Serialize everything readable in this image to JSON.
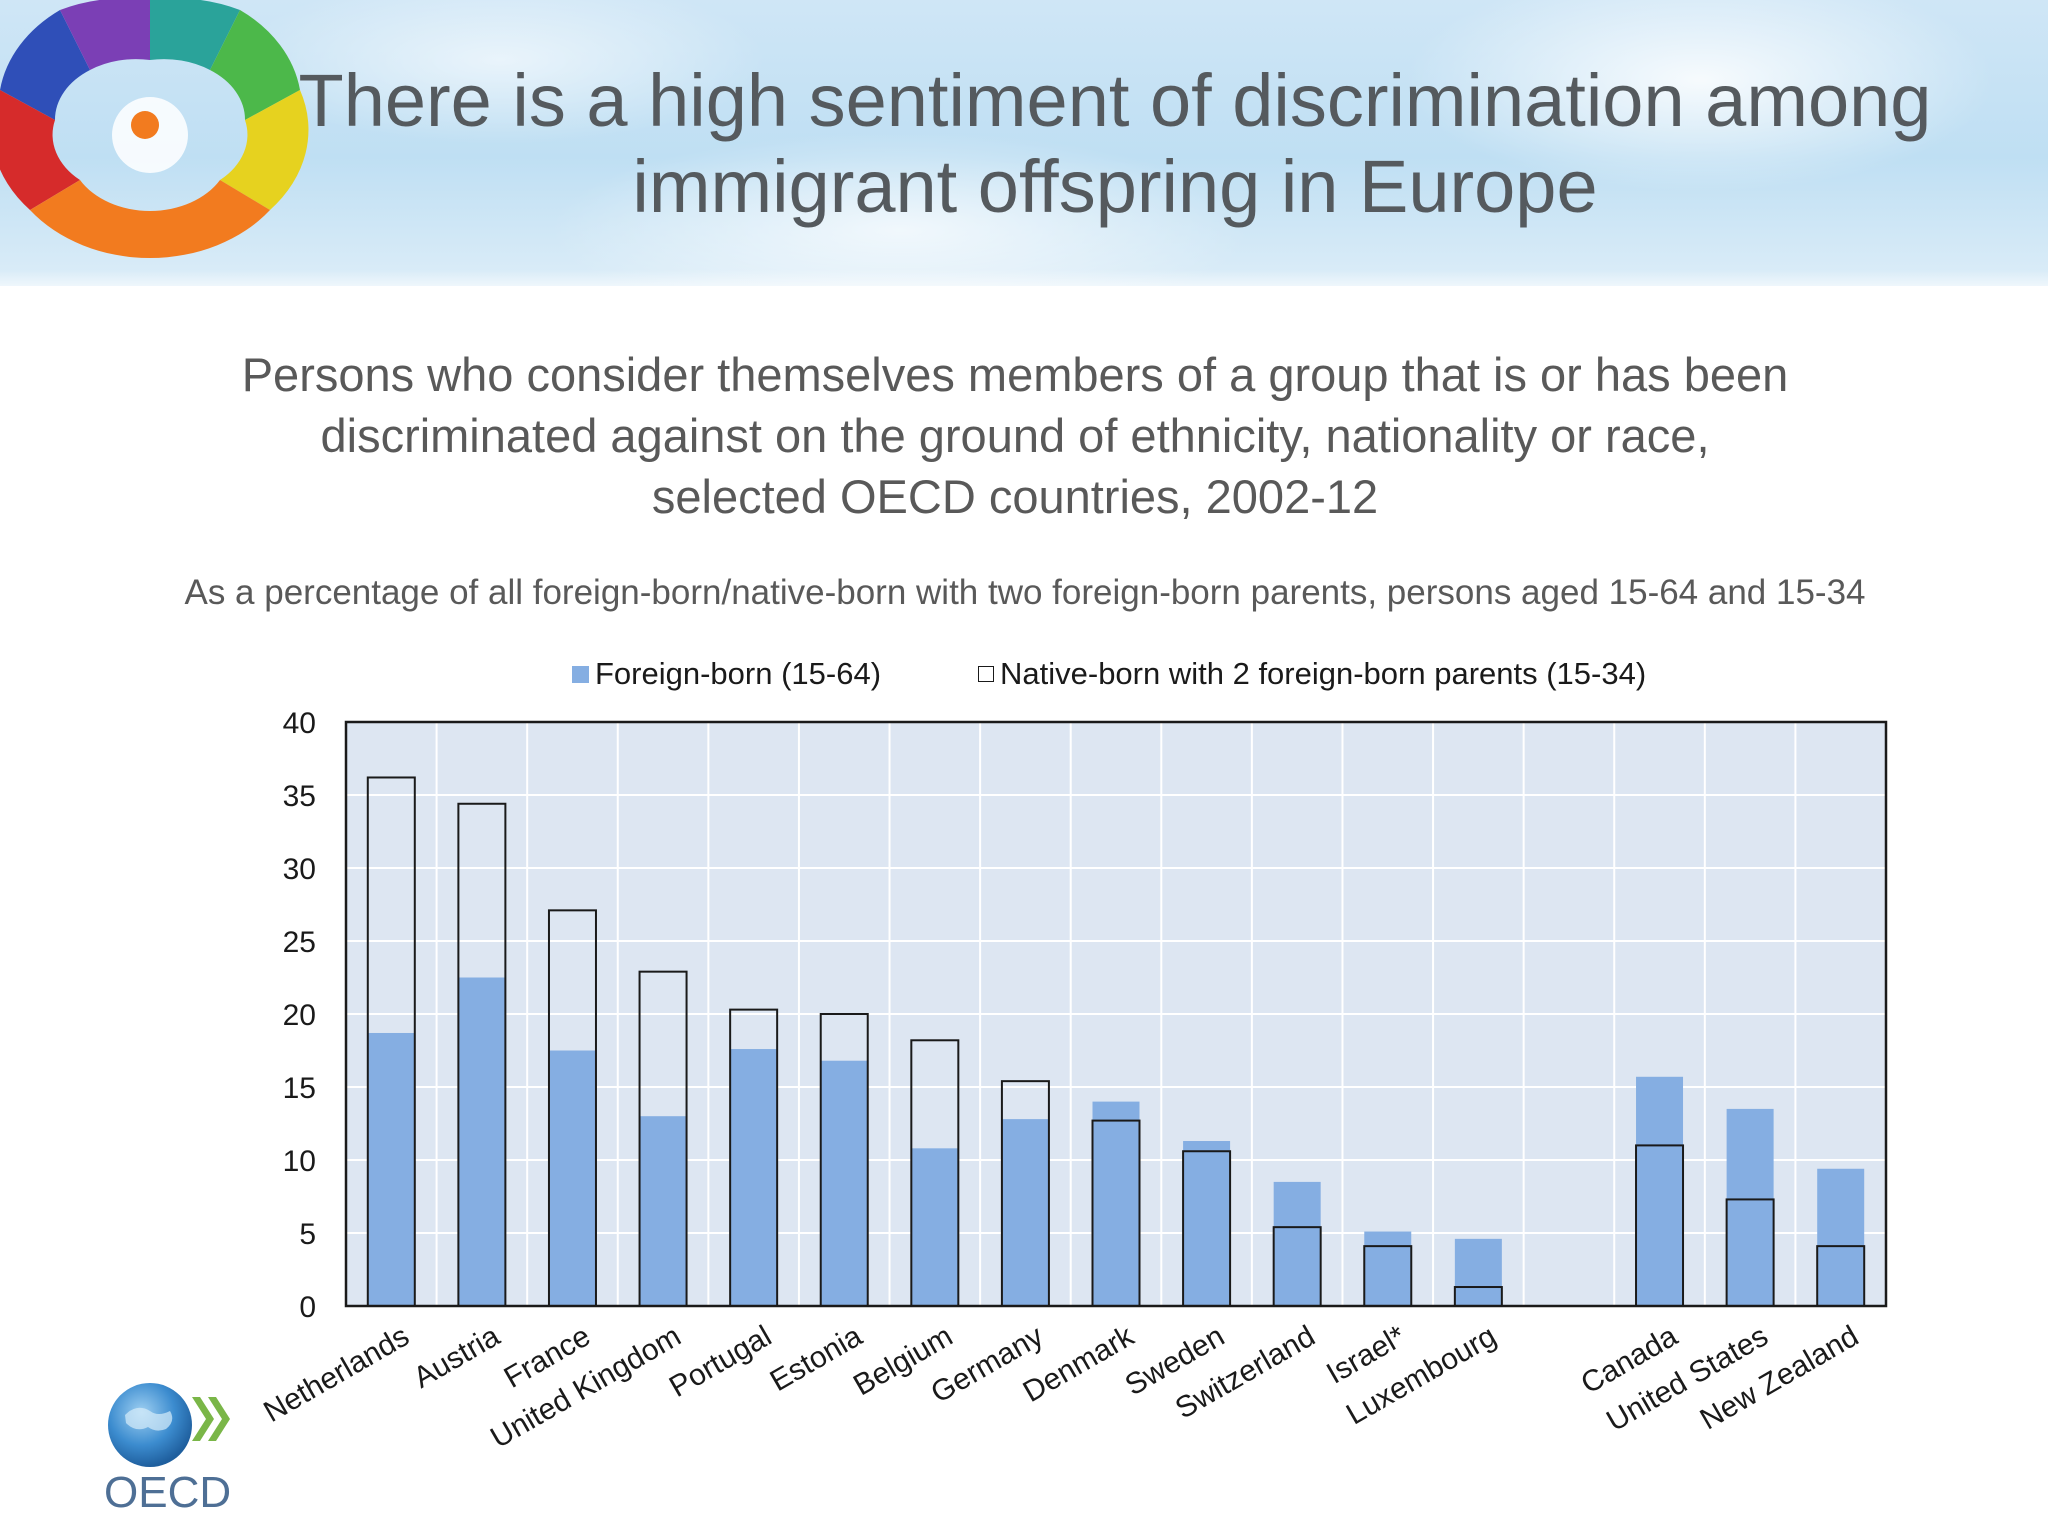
{
  "header": {
    "title_line1": "There is a high sentiment of discrimination among",
    "title_line2": "immigrant offspring in Europe"
  },
  "chart_header": {
    "subtitle_line1": "Persons who consider themselves members of a group that is or has been",
    "subtitle_line2": "discriminated against on the ground of ethnicity, nationality or race,",
    "subtitle_line3": "selected OECD countries, 2002-12",
    "note": "As a percentage of all foreign-born/native-born with two foreign-born parents, persons aged 15-64 and 15-34"
  },
  "legend": {
    "foreign": "Foreign-born (15-64)",
    "native": "Native-born with 2 foreign-born parents (15-34)"
  },
  "logo": {
    "text": "OECD"
  },
  "colors": {
    "foreign_bar": "#85aee2",
    "plot_bg": "#dde6f2",
    "grid": "#ffffff",
    "axis": "#1a1a1a"
  },
  "chart_data": {
    "type": "bar",
    "categories": [
      "Netherlands",
      "Austria",
      "France",
      "United Kingdom",
      "Portugal",
      "Estonia",
      "Belgium",
      "Germany",
      "Denmark",
      "Sweden",
      "Switzerland",
      "Israel*",
      "Luxembourg",
      "",
      "Canada",
      "United States",
      "New Zealand"
    ],
    "series": [
      {
        "name": "Foreign-born (15-64)",
        "style": "filled",
        "values": [
          18.7,
          22.5,
          17.5,
          13.0,
          17.6,
          16.8,
          10.8,
          12.8,
          14.0,
          11.3,
          8.5,
          5.1,
          4.6,
          null,
          15.7,
          13.5,
          9.4
        ]
      },
      {
        "name": "Native-born with 2 foreign-born parents (15-34)",
        "style": "outline",
        "values": [
          36.2,
          34.4,
          27.1,
          22.9,
          20.3,
          20.0,
          18.2,
          15.4,
          12.7,
          10.6,
          5.4,
          4.1,
          1.3,
          null,
          11.0,
          7.3,
          4.1
        ]
      }
    ],
    "ylim": [
      0,
      40
    ],
    "yticks": [
      0,
      5,
      10,
      15,
      20,
      25,
      30,
      35,
      40
    ],
    "grid": true,
    "legend_position": "top-center"
  }
}
